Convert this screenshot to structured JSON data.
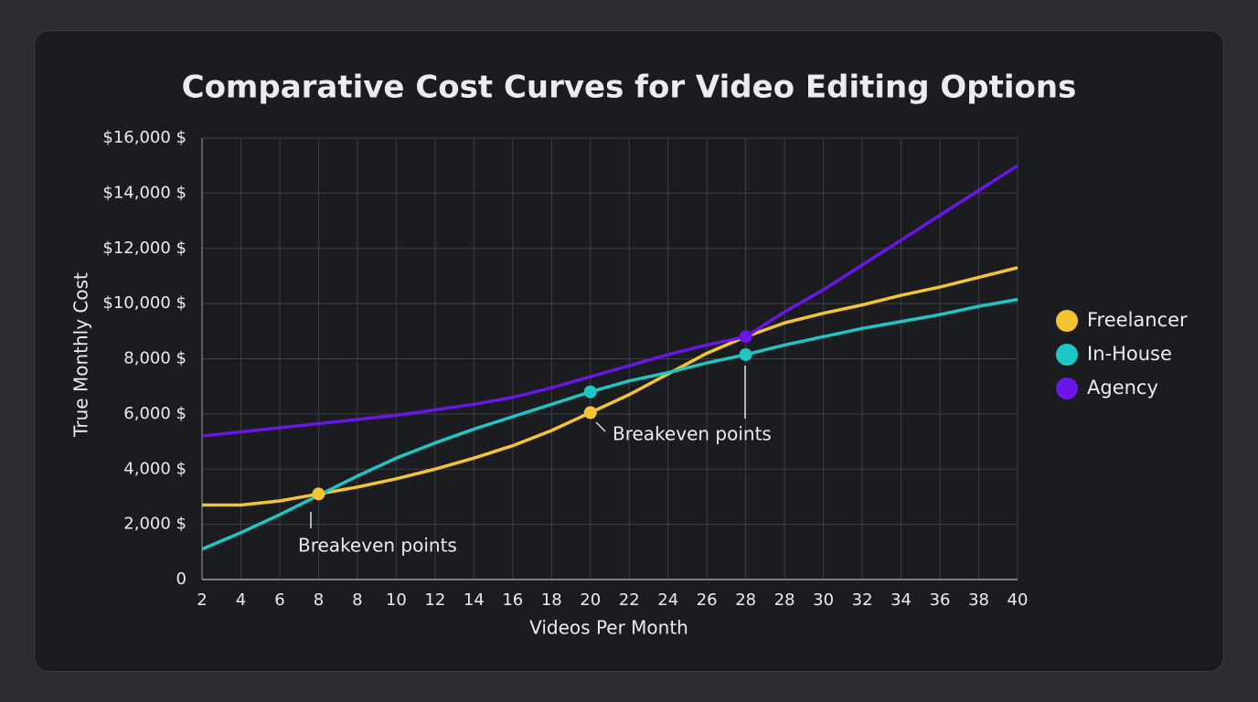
{
  "chart_data": {
    "type": "line",
    "title": "Comparative Cost Curves for Video Editing Options",
    "x_label": "Videos Per Month",
    "y_label": "True Monthly Cost",
    "categories": [
      "2",
      "4",
      "6",
      "8",
      "8",
      "10",
      "12",
      "14",
      "16",
      "18",
      "20",
      "22",
      "24",
      "26",
      "28",
      "28",
      "30",
      "32",
      "34",
      "36",
      "38",
      "40"
    ],
    "ylim": [
      0,
      16000
    ],
    "yticks": [
      0,
      {
        "value": 2000,
        "label": "2,000 $"
      },
      {
        "value": 4000,
        "label": "4,000 $"
      },
      {
        "value": 6000,
        "label": "6,000 $"
      },
      {
        "value": 8000,
        "label": "8,000 $"
      },
      {
        "value": 10000,
        "label": "$10,000 $"
      },
      {
        "value": 12000,
        "label": "$12,000 $"
      },
      {
        "value": 14000,
        "label": "$14,000 $"
      },
      {
        "value": 16000,
        "label": "$16,000 $"
      }
    ],
    "grid": true,
    "legend": "right",
    "series": [
      {
        "name": "Freelancer",
        "color": "#f5c431",
        "markers": [
          3,
          10
        ],
        "values": [
          2700,
          2700,
          2850,
          3100,
          3350,
          3650,
          4000,
          4400,
          4850,
          5400,
          6050,
          6700,
          7450,
          8200,
          8800,
          9300,
          9650,
          9950,
          10300,
          10600,
          10950,
          11300
        ]
      },
      {
        "name": "In-House",
        "color": "#1ec6c4",
        "markers": [
          10,
          14
        ],
        "values": [
          1100,
          1700,
          2350,
          3050,
          3750,
          4400,
          4950,
          5450,
          5900,
          6350,
          6800,
          7200,
          7500,
          7850,
          8150,
          8500,
          8800,
          9100,
          9350,
          9600,
          9900,
          10150
        ]
      },
      {
        "name": "Agency",
        "color": "#6a16e8",
        "markers": [
          14
        ],
        "values": [
          5200,
          5350,
          5500,
          5650,
          5800,
          5950,
          6150,
          6350,
          6600,
          6950,
          7350,
          7750,
          8150,
          8500,
          8800,
          9700,
          10500,
          11400,
          12300,
          13200,
          14100,
          15000
        ]
      }
    ],
    "annotations": [
      {
        "text": "Breakeven points"
      },
      {
        "text": "Breakeven points"
      }
    ]
  }
}
